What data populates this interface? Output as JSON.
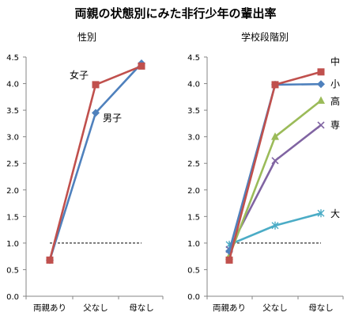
{
  "title": "両親の状態別にみた非行少年の輩出率",
  "chart_data": [
    {
      "type": "line",
      "title": "性別",
      "categories": [
        "両親あり",
        "父なし",
        "母なし"
      ],
      "ylim": [
        0,
        4.5
      ],
      "yticks": [
        "0.0",
        "0.5",
        "1.0",
        "1.5",
        "2.0",
        "2.5",
        "3.0",
        "3.5",
        "4.0",
        "4.5"
      ],
      "reference_line": 1.0,
      "series": [
        {
          "name": "女子",
          "values": [
            0.68,
            3.98,
            4.33
          ],
          "color": "#c0504d",
          "marker": "square"
        },
        {
          "name": "男子",
          "values": [
            0.68,
            3.45,
            4.38
          ],
          "color": "#4f81bd",
          "marker": "diamond"
        }
      ]
    },
    {
      "type": "line",
      "title": "学校段階別",
      "categories": [
        "両親あり",
        "父なし",
        "母なし"
      ],
      "ylim": [
        0,
        4.5
      ],
      "yticks": [
        "0.0",
        "0.5",
        "1.0",
        "1.5",
        "2.0",
        "2.5",
        "3.0",
        "3.5",
        "4.0",
        "4.5"
      ],
      "reference_line": 1.0,
      "series": [
        {
          "name": "中",
          "values": [
            0.68,
            3.98,
            4.22
          ],
          "color": "#c0504d",
          "marker": "square"
        },
        {
          "name": "小",
          "values": [
            0.85,
            3.98,
            3.99
          ],
          "color": "#4f81bd",
          "marker": "diamond"
        },
        {
          "name": "高",
          "values": [
            0.75,
            3.0,
            3.68
          ],
          "color": "#9bbb59",
          "marker": "triangle"
        },
        {
          "name": "専",
          "values": [
            0.88,
            2.55,
            3.22
          ],
          "color": "#8064a2",
          "marker": "x"
        },
        {
          "name": "大",
          "values": [
            0.97,
            1.33,
            1.56
          ],
          "color": "#4bacc6",
          "marker": "star"
        }
      ]
    }
  ]
}
